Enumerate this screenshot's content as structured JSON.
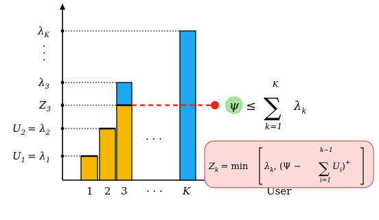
{
  "y_labels": {
    "lambda_K": "λ",
    "lambda_K_sub": "K",
    "dots": "⋮",
    "lambda_3": "λ",
    "lambda_3_sub": "3",
    "Z_3": "Z",
    "Z_3_sub": "3",
    "U2": "U",
    "U2_sub": "2",
    "U2_eq": "= λ",
    "U2_eq_sub": "2",
    "U1": "U",
    "U1_sub": "1",
    "U1_eq": "= λ",
    "U1_eq_sub": "1"
  },
  "x_labels": {
    "one": "1",
    "two": "2",
    "three": "3",
    "dots": "· · ·",
    "K": "K",
    "axis": "User"
  },
  "middle_dots": "· · ·",
  "inequality": {
    "psi": "ψ",
    "leq": "≤",
    "sum": "∑",
    "upper": "K",
    "lower": "k=1",
    "term": "λ",
    "term_sub": "k"
  },
  "formula": {
    "lhs": "Z",
    "lhs_sub": "k",
    "eq_min": "= min",
    "lambda": "λ",
    "lambda_sub": "k",
    "rest": ", (Ψ −",
    "sum": "∑",
    "upper": "k−1",
    "lower": "i=1",
    "U": "U",
    "U_sub": "i",
    "close": ")",
    "plus": "+"
  },
  "colors": {
    "orange": "#F5B800",
    "blue": "#1CA8F0",
    "red": "#E52A1C",
    "psi_bg": "#A8E0A0",
    "formula_bg": "#FCDADA",
    "formula_border": "#C06060"
  }
}
